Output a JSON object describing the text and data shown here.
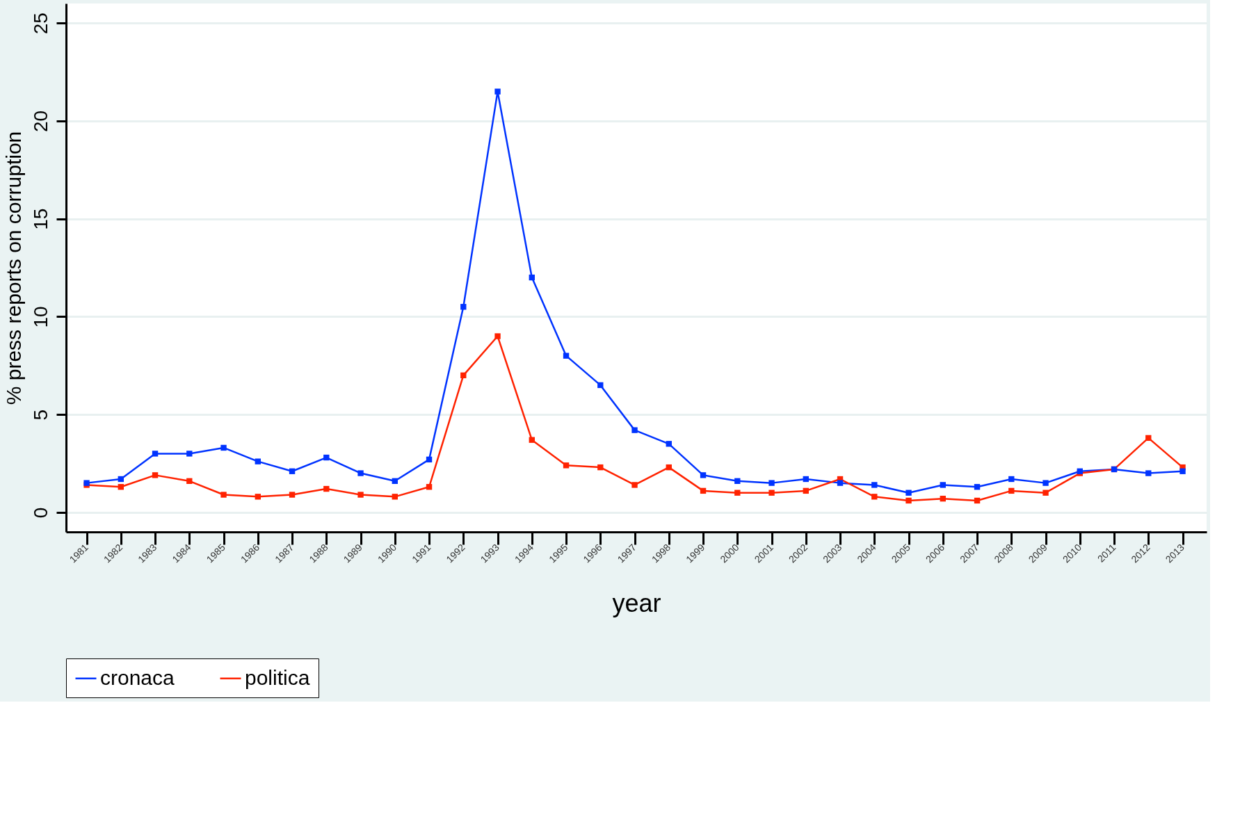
{
  "chart_data": {
    "type": "line",
    "xlabel": "year",
    "ylabel": "% press reports on corruption",
    "x": [
      1981,
      1982,
      1983,
      1984,
      1985,
      1986,
      1987,
      1988,
      1989,
      1990,
      1991,
      1992,
      1993,
      1994,
      1995,
      1996,
      1997,
      1998,
      1999,
      2000,
      2001,
      2002,
      2003,
      2004,
      2005,
      2006,
      2007,
      2008,
      2009,
      2010,
      2011,
      2012,
      2013
    ],
    "series": [
      {
        "name": "cronaca",
        "color": "#0033ff",
        "values": [
          1.5,
          1.7,
          3.0,
          3.0,
          3.3,
          2.6,
          2.1,
          2.8,
          2.0,
          1.6,
          2.7,
          10.5,
          21.5,
          12.0,
          8.0,
          6.5,
          4.2,
          3.5,
          1.9,
          1.6,
          1.5,
          1.7,
          1.5,
          1.4,
          1.0,
          1.4,
          1.3,
          1.7,
          1.5,
          2.1,
          2.2,
          2.0,
          2.1
        ]
      },
      {
        "name": "politica",
        "color": "#ff2200",
        "values": [
          1.4,
          1.3,
          1.9,
          1.6,
          0.9,
          0.8,
          0.9,
          1.2,
          0.9,
          0.8,
          1.3,
          7.0,
          9.0,
          3.7,
          2.4,
          2.3,
          1.4,
          2.3,
          1.1,
          1.0,
          1.0,
          1.1,
          1.7,
          0.8,
          0.6,
          0.7,
          0.6,
          1.1,
          1.0,
          2.0,
          2.2,
          3.8,
          2.3
        ]
      }
    ],
    "xlim": [
      1980.4,
      2013.7
    ],
    "xticks": [
      1981,
      1982,
      1983,
      1984,
      1985,
      1986,
      1987,
      1988,
      1989,
      1990,
      1991,
      1992,
      1993,
      1994,
      1995,
      1996,
      1997,
      1998,
      1999,
      2000,
      2001,
      2002,
      2003,
      2004,
      2005,
      2006,
      2007,
      2008,
      2009,
      2010,
      2011,
      2012,
      2013
    ],
    "ylim": [
      -1,
      26
    ],
    "yticks": [
      0,
      5,
      10,
      15,
      20,
      25
    ],
    "grid": "y",
    "legend": "bottom",
    "marker": "square",
    "line_style": "solid"
  }
}
